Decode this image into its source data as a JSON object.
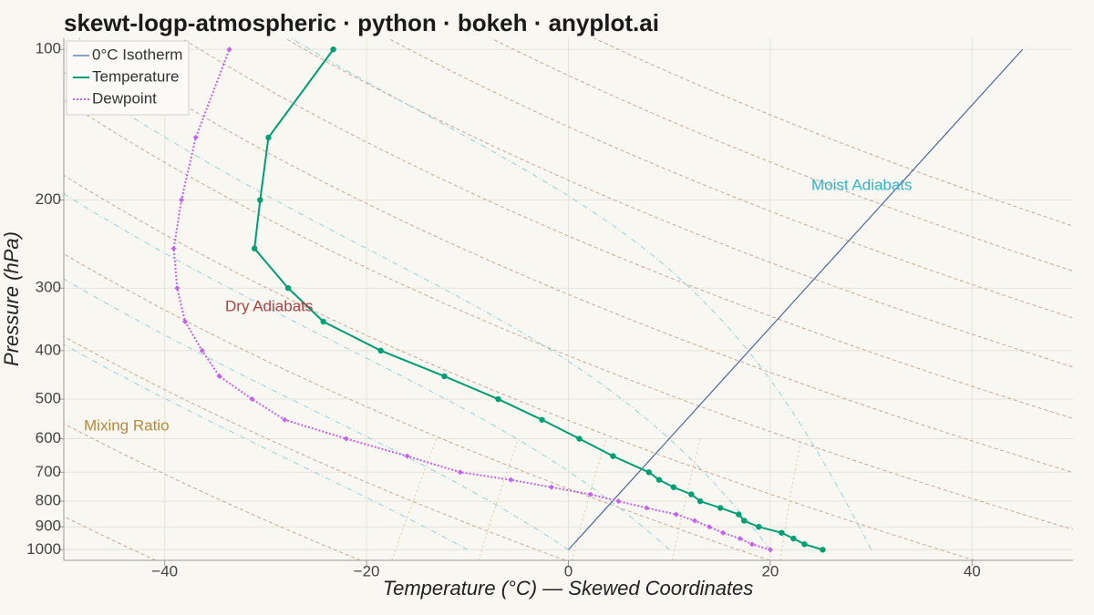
{
  "chart_data": {
    "type": "skewt",
    "title": "skewt-logp-atmospheric · python · bokeh · anyplot.ai",
    "x_label": "Temperature (°C) — Skewed Coordinates",
    "y_label": "Pressure (hPa)",
    "xlim": [
      -50,
      50
    ],
    "ylim": [
      1050,
      95
    ],
    "yscale": "log",
    "skew": 45,
    "grid": true,
    "legend": "top-left",
    "xticks": [
      {
        "value": -40,
        "label": "−40"
      },
      {
        "value": -20,
        "label": "−20"
      },
      0,
      20,
      40
    ],
    "yticks": [
      100,
      200,
      300,
      400,
      500,
      600,
      700,
      800,
      900,
      1000
    ],
    "series": [
      {
        "name": "0°C Isotherm",
        "color": "#4a68a8",
        "style": "solid",
        "pressure": [
          1000,
          100
        ],
        "values": [
          0,
          0
        ]
      },
      {
        "name": "Temperature",
        "color": "#009e73",
        "style": "solid",
        "pressure": [
          1000,
          975,
          950,
          925,
          900,
          875,
          850,
          825,
          800,
          775,
          750,
          725,
          700,
          650,
          600,
          550,
          500,
          450,
          400,
          350,
          300,
          250,
          200,
          150,
          100
        ],
        "values": [
          25.2,
          22.9,
          21.3,
          19.6,
          16.8,
          14.8,
          13.7,
          11.3,
          8.7,
          7.2,
          4.8,
          2.7,
          1.0,
          -4.0,
          -8.9,
          -14.3,
          -20.5,
          -27.9,
          -36.5,
          -44.8,
          -51.3,
          -58.2,
          -62.0,
          -66.8,
          -68.3
        ]
      },
      {
        "name": "Dewpoint",
        "color": "#c462f0",
        "style": "dotted",
        "pressure": [
          1000,
          975,
          950,
          925,
          900,
          875,
          850,
          825,
          800,
          775,
          750,
          725,
          700,
          650,
          600,
          550,
          500,
          450,
          400,
          350,
          300,
          250,
          200,
          150,
          100
        ],
        "values": [
          20.0,
          17.7,
          16.0,
          13.8,
          11.9,
          9.9,
          7.5,
          4.0,
          0.6,
          -2.8,
          -7.3,
          -12.0,
          -17.7,
          -24.4,
          -32.0,
          -39.8,
          -44.9,
          -50.2,
          -54.2,
          -58.5,
          -62.3,
          -66.2,
          -69.8,
          -74.0,
          -78.6
        ]
      }
    ],
    "dry_adiabats": {
      "color": "#c8a890",
      "values": [
        230,
        250,
        270,
        290,
        310,
        330,
        350,
        370,
        390,
        410,
        430,
        450
      ]
    },
    "moist_adiabats": {
      "color": "#8fd3dc",
      "values": [
        -10,
        0,
        10,
        20,
        30
      ]
    },
    "mixing_ratios": {
      "color": "#d8c9a0",
      "values": [
        1,
        2,
        4,
        8,
        16
      ]
    },
    "annotations": [
      {
        "text": "Dry Adiabats",
        "color": "#b04040"
      },
      {
        "text": "Moist Adiabats",
        "color": "#2fb5cc"
      },
      {
        "text": "Mixing Ratio",
        "color": "#b8893a"
      }
    ]
  }
}
